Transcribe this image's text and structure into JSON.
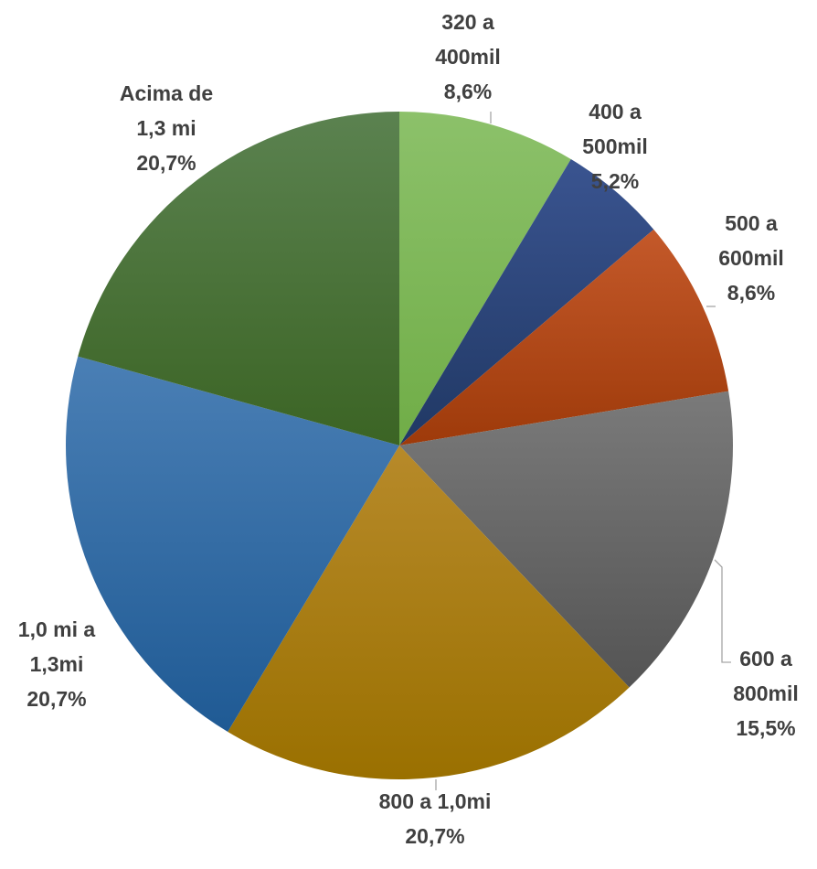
{
  "chart_data": {
    "type": "pie",
    "title": "",
    "start_angle_deg": 0,
    "direction": "clockwise",
    "legend": "none",
    "slices": [
      {
        "label_lines": [
          "320 a",
          "400mil",
          "8,6%"
        ],
        "value": 8.6,
        "color": "#70ad47",
        "color_light": "#8cc16a"
      },
      {
        "label_lines": [
          "400 a",
          "500mil",
          "5,2%"
        ],
        "value": 5.2,
        "color": "#203864",
        "color_light": "#3a5490"
      },
      {
        "label_lines": [
          "500 a",
          "600mil",
          "8,6%"
        ],
        "value": 8.6,
        "color": "#9e3a0a",
        "color_light": "#c4592a"
      },
      {
        "label_lines": [
          "600 a",
          "800mil",
          "15,5%"
        ],
        "value": 15.5,
        "color": "#545454",
        "color_light": "#7a7a7a"
      },
      {
        "label_lines": [
          "800 a 1,0mi",
          "20,7%"
        ],
        "value": 20.7,
        "color": "#9a7000",
        "color_light": "#b78a2a"
      },
      {
        "label_lines": [
          "1,0 mi a",
          "1,3mi",
          "20,7%"
        ],
        "value": 20.7,
        "color": "#1f5a94",
        "color_light": "#4a7fb5"
      },
      {
        "label_lines": [
          "Acima de",
          "1,3 mi",
          "20,7%"
        ],
        "value": 20.7,
        "color": "#3b6424",
        "color_light": "#5b8250"
      }
    ]
  }
}
